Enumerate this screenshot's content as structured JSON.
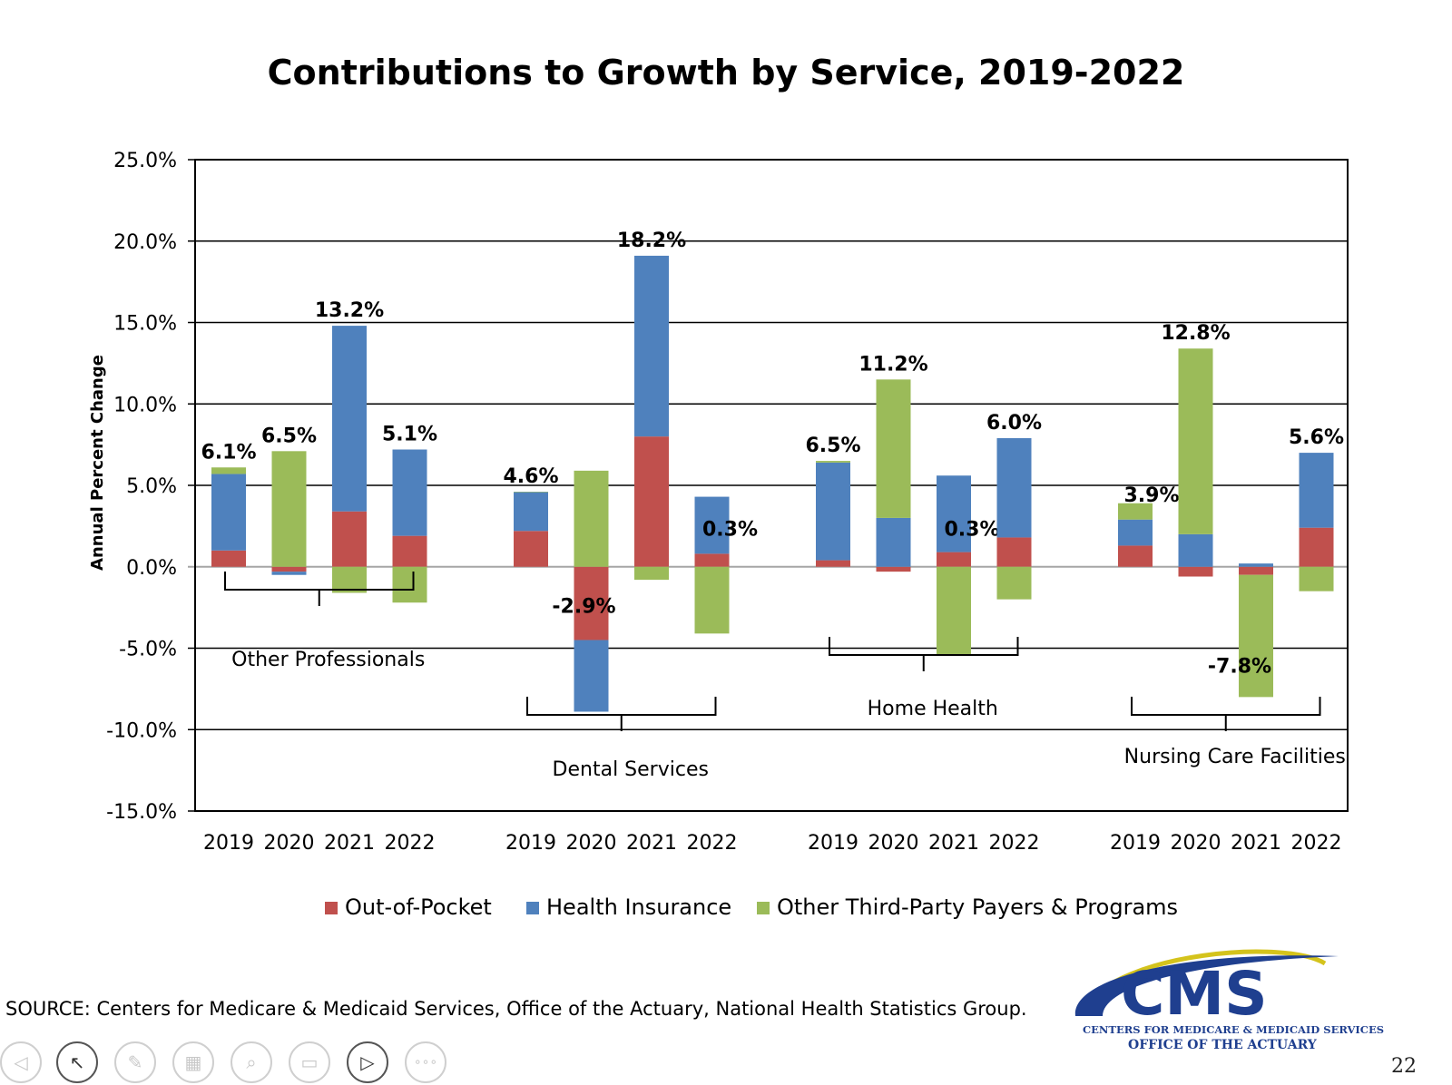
{
  "chart_data": {
    "type": "bar",
    "stacked": true,
    "title": "Contributions to Growth by Service, 2019-2022",
    "ylabel": "Annual Percent Change",
    "ylim": [
      -15,
      25
    ],
    "yticks": [
      25,
      20,
      15,
      10,
      5,
      0,
      -5,
      -10,
      -15
    ],
    "ytick_labels": [
      "25.0%",
      "20.0%",
      "15.0%",
      "10.0%",
      "5.0%",
      "0.0%",
      "-5.0%",
      "-10.0%",
      "-15.0%"
    ],
    "grid": true,
    "legend_position": "bottom",
    "series": [
      {
        "name": "Out-of-Pocket",
        "color": "#c0504d"
      },
      {
        "name": "Health Insurance",
        "color": "#4f81bd"
      },
      {
        "name": "Other Third-Party Payers & Programs",
        "color": "#9bbb59"
      }
    ],
    "groups": [
      {
        "name": "Other Professionals",
        "years": [
          "2019",
          "2020",
          "2021",
          "2022"
        ],
        "out_of_pocket": [
          1.0,
          -0.3,
          3.4,
          1.9
        ],
        "health_insurance": [
          4.7,
          -0.2,
          11.4,
          5.3
        ],
        "other_third_party": [
          0.4,
          7.1,
          -1.6,
          -2.2
        ],
        "totals": [
          "6.1%",
          "6.5%",
          "13.2%",
          "5.1%"
        ]
      },
      {
        "name": "Dental Services",
        "years": [
          "2019",
          "2020",
          "2021",
          "2022"
        ],
        "out_of_pocket": [
          2.2,
          -4.5,
          8.0,
          0.8
        ],
        "health_insurance": [
          2.4,
          -4.4,
          11.1,
          3.5
        ],
        "other_third_party": [
          0.0,
          5.9,
          -0.8,
          -4.1
        ],
        "totals": [
          "4.6%",
          "-2.9%",
          "18.2%",
          "0.3%"
        ]
      },
      {
        "name": "Home Health",
        "years": [
          "2019",
          "2020",
          "2021",
          "2022"
        ],
        "out_of_pocket": [
          0.4,
          -0.3,
          0.9,
          1.8
        ],
        "health_insurance": [
          6.0,
          3.0,
          4.7,
          6.1
        ],
        "other_third_party": [
          0.1,
          8.5,
          -5.4,
          -2.0
        ],
        "totals": [
          "6.5%",
          "11.2%",
          "0.3%",
          "6.0%"
        ]
      },
      {
        "name": "Nursing Care Facilities",
        "years": [
          "2019",
          "2020",
          "2021",
          "2022"
        ],
        "out_of_pocket": [
          1.3,
          -0.6,
          -0.5,
          2.4
        ],
        "health_insurance": [
          1.6,
          2.0,
          0.2,
          4.6
        ],
        "other_third_party": [
          1.0,
          11.4,
          -7.5,
          -1.5
        ],
        "totals": [
          "3.9%",
          "12.8%",
          "-7.8%",
          "5.6%"
        ]
      }
    ]
  },
  "source": "SOURCE: Centers for Medicare & Medicaid Services, Office of the Actuary, National Health Statistics Group.",
  "logo": {
    "text": "CMS",
    "line1": "CENTERS FOR MEDICARE & MEDICAID SERVICES",
    "line2": "OFFICE OF THE ACTUARY",
    "color": "#1f3f8f",
    "swoosh_color": "#d4c31c"
  },
  "slide_number": "22",
  "toolbar": [
    {
      "icon": "previous-arrow-icon",
      "glyph": "◁"
    },
    {
      "icon": "pointer-icon",
      "glyph": "↖"
    },
    {
      "icon": "pen-icon",
      "glyph": "✎"
    },
    {
      "icon": "slides-grid-icon",
      "glyph": "▦"
    },
    {
      "icon": "zoom-icon",
      "glyph": "⌕"
    },
    {
      "icon": "subtitles-icon",
      "glyph": "▭"
    },
    {
      "icon": "camera-icon",
      "glyph": "▷"
    },
    {
      "icon": "more-options-icon",
      "glyph": "∘∘∘"
    }
  ]
}
